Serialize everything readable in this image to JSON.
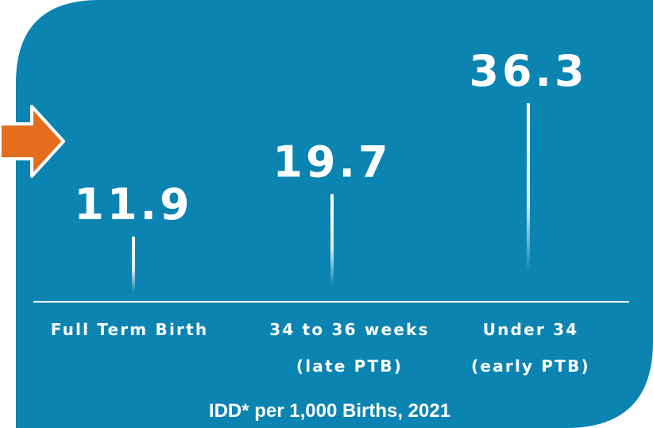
{
  "chart_data": {
    "type": "lollipop",
    "title": "IDD* per 1,000 Births, 2021",
    "categories": [
      [
        "Full Term Birth"
      ],
      [
        "34 to 36 weeks",
        "(late PTB)"
      ],
      [
        "Under 34",
        "(early PTB)"
      ]
    ],
    "values": [
      11.9,
      19.7,
      36.3
    ],
    "color": "#ffffff",
    "background": "#0b84b2",
    "arrow_color": "#e36f1e"
  }
}
